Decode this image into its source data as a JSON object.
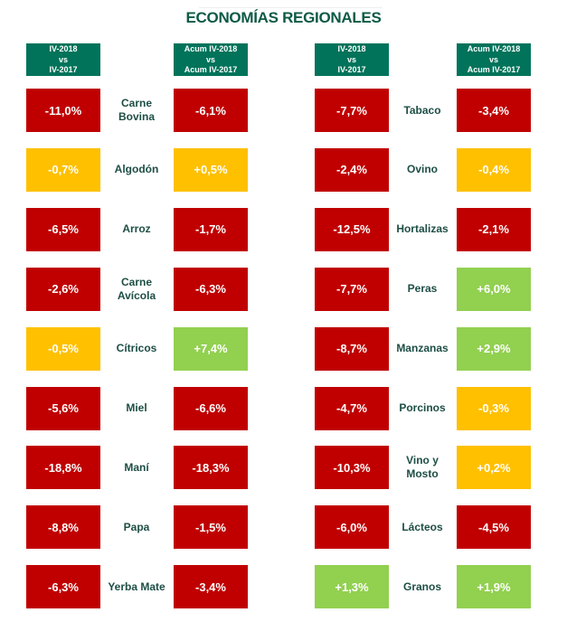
{
  "title": "ECONOMÍAS REGIONALES",
  "headers": {
    "quarter": [
      "IV-2018",
      "vs",
      "IV-2017"
    ],
    "cumulative": [
      "Acum IV-2018",
      "vs",
      "Acum IV-2017"
    ]
  },
  "colors": {
    "neg": "#c00000",
    "neu": "#ffc000",
    "pos": "#92d050",
    "header": "#00735a"
  },
  "left": [
    {
      "label": "Carne\nBovina",
      "q": "-11,0%",
      "qs": "neg",
      "a": "-6,1%",
      "as": "neg"
    },
    {
      "label": "Algodón",
      "q": "-0,7%",
      "qs": "neu",
      "a": "+0,5%",
      "as": "neu"
    },
    {
      "label": "Arroz",
      "q": "-6,5%",
      "qs": "neg",
      "a": "-1,7%",
      "as": "neg"
    },
    {
      "label": "Carne\nAvícola",
      "q": "-2,6%",
      "qs": "neg",
      "a": "-6,3%",
      "as": "neg"
    },
    {
      "label": "Cítricos",
      "q": "-0,5%",
      "qs": "neu",
      "a": "+7,4%",
      "as": "pos"
    },
    {
      "label": "Miel",
      "q": "-5,6%",
      "qs": "neg",
      "a": "-6,6%",
      "as": "neg"
    },
    {
      "label": "Maní",
      "q": "-18,8%",
      "qs": "neg",
      "a": "-18,3%",
      "as": "neg"
    },
    {
      "label": "Papa",
      "q": "-8,8%",
      "qs": "neg",
      "a": "-1,5%",
      "as": "neg"
    },
    {
      "label": "Yerba Mate",
      "q": "-6,3%",
      "qs": "neg",
      "a": "-3,4%",
      "as": "neg"
    }
  ],
  "right": [
    {
      "label": "Tabaco",
      "q": "-7,7%",
      "qs": "neg",
      "a": "-3,4%",
      "as": "neg"
    },
    {
      "label": "Ovino",
      "q": "-2,4%",
      "qs": "neg",
      "a": "-0,4%",
      "as": "neu"
    },
    {
      "label": "Hortalizas",
      "q": "-12,5%",
      "qs": "neg",
      "a": "-2,1%",
      "as": "neg"
    },
    {
      "label": "Peras",
      "q": "-7,7%",
      "qs": "neg",
      "a": "+6,0%",
      "as": "pos"
    },
    {
      "label": "Manzanas",
      "q": "-8,7%",
      "qs": "neg",
      "a": "+2,9%",
      "as": "pos"
    },
    {
      "label": "Porcinos",
      "q": "-4,7%",
      "qs": "neg",
      "a": "-0,3%",
      "as": "neu"
    },
    {
      "label": "Vino y\nMosto",
      "q": "-10,3%",
      "qs": "neg",
      "a": "+0,2%",
      "as": "neu"
    },
    {
      "label": "Lácteos",
      "q": "-6,0%",
      "qs": "neg",
      "a": "-4,5%",
      "as": "neg"
    },
    {
      "label": "Granos",
      "q": "+1,3%",
      "qs": "pos",
      "a": "+1,9%",
      "as": "pos"
    }
  ]
}
